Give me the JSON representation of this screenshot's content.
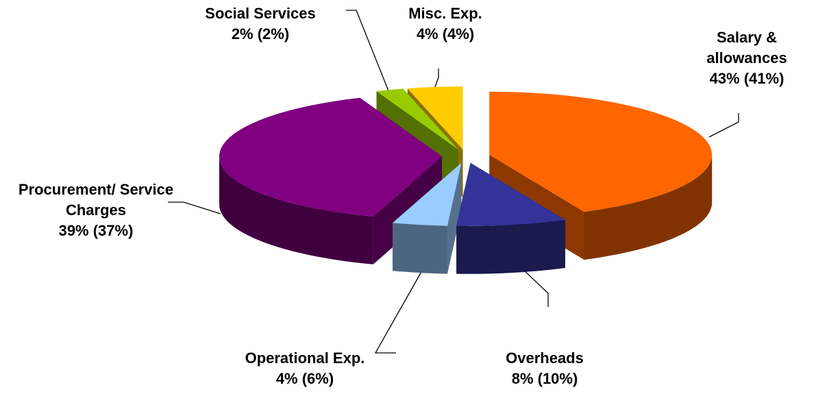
{
  "chart_data": {
    "type": "pie",
    "categories": [
      "Salary & allowances",
      "Overheads",
      "Operational Exp.",
      "Procurement/ Service Charges",
      "Social Services",
      "Misc. Exp."
    ],
    "values": [
      43,
      8,
      4,
      39,
      2,
      4
    ],
    "value_labels": [
      "43% (41%)",
      "8% (10%)",
      "4% (6%)",
      "39% (37%)",
      "2% (2%)",
      "4% (4%)"
    ],
    "colors": [
      "#ff6600",
      "#333399",
      "#99ccff",
      "#800080",
      "#99cc00",
      "#ffcc00"
    ]
  }
}
